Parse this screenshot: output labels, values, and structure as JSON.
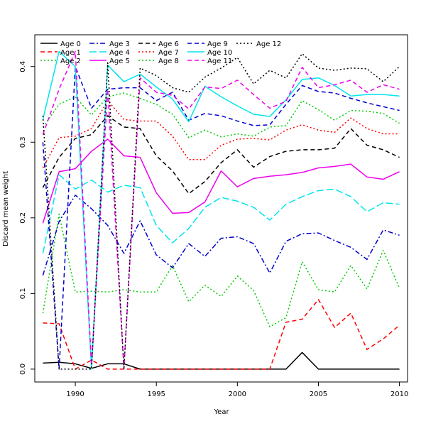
{
  "chart_data": {
    "type": "line",
    "xlabel": "Year",
    "ylabel": "Discard mean weight",
    "xlim": [
      1987.5,
      2010.5
    ],
    "ylim": [
      -0.017,
      0.442
    ],
    "xticks": [
      1990,
      1995,
      2000,
      2005,
      2010
    ],
    "yticks": [
      0.0,
      0.1,
      0.2,
      0.3,
      0.4
    ],
    "ytick_labels": [
      "0.0",
      "0.1",
      "0.2",
      "0.3",
      "0.4"
    ],
    "grid": false,
    "legend_position": "top-left",
    "x": [
      1988,
      1989,
      1990,
      1991,
      1992,
      1993,
      1994,
      1995,
      1996,
      1997,
      1998,
      1999,
      2000,
      2001,
      2002,
      2003,
      2004,
      2005,
      2006,
      2007,
      2008,
      2009,
      2010
    ],
    "series": [
      {
        "name": "Age 0",
        "color": "#000000",
        "dash": "solid",
        "values": [
          0.008,
          0.009,
          0.007,
          0.001,
          0.007,
          0.007,
          0.0,
          0.0,
          0.0,
          0.0,
          0.0,
          0.0,
          0.0,
          0.0,
          0.0,
          0.0,
          0.022,
          0.0,
          0.0,
          0.0,
          0.0,
          0.0,
          0.0
        ]
      },
      {
        "name": "Age 1",
        "color": "#ff0000",
        "dash": "dashed",
        "values": [
          0.061,
          0.06,
          0.0,
          0.012,
          0.0,
          0.0,
          0.0,
          0.0,
          0.0,
          0.0,
          0.0,
          0.0,
          0.0,
          0.0,
          0.0,
          0.062,
          0.066,
          0.092,
          0.055,
          0.074,
          0.026,
          0.04,
          0.058
        ]
      },
      {
        "name": "Age 2",
        "color": "#00cd00",
        "dash": "dotted",
        "values": [
          0.074,
          0.205,
          0.102,
          0.103,
          0.102,
          0.105,
          0.102,
          0.102,
          0.137,
          0.089,
          0.111,
          0.096,
          0.123,
          0.104,
          0.056,
          0.068,
          0.142,
          0.105,
          0.102,
          0.137,
          0.106,
          0.157,
          0.107
        ]
      },
      {
        "name": "Age 3",
        "color": "#0000cd",
        "dash": "dashdot",
        "values": [
          0.124,
          0.195,
          0.23,
          0.212,
          0.19,
          0.153,
          0.196,
          0.151,
          0.134,
          0.166,
          0.149,
          0.173,
          0.175,
          0.166,
          0.127,
          0.169,
          0.179,
          0.18,
          0.17,
          0.161,
          0.145,
          0.184,
          0.177
        ]
      },
      {
        "name": "Age 4",
        "color": "#00e5ee",
        "dash": "longdash",
        "values": [
          0.153,
          0.257,
          0.238,
          0.25,
          0.234,
          0.243,
          0.24,
          0.19,
          0.167,
          0.186,
          0.214,
          0.227,
          0.222,
          0.214,
          0.197,
          0.218,
          0.228,
          0.236,
          0.238,
          0.228,
          0.208,
          0.22,
          0.218
        ]
      },
      {
        "name": "Age 5",
        "color": "#ee00ee",
        "dash": "solid",
        "values": [
          0.193,
          0.261,
          0.265,
          0.288,
          0.304,
          0.282,
          0.28,
          0.233,
          0.206,
          0.207,
          0.221,
          0.262,
          0.241,
          0.252,
          0.255,
          0.257,
          0.26,
          0.266,
          0.268,
          0.271,
          0.254,
          0.251,
          0.261
        ]
      },
      {
        "name": "Age 6",
        "color": "#000000",
        "dash": "dashed",
        "values": [
          0.24,
          0.28,
          0.305,
          0.31,
          0.335,
          0.32,
          0.318,
          0.282,
          0.262,
          0.232,
          0.248,
          0.273,
          0.29,
          0.267,
          0.281,
          0.288,
          0.29,
          0.29,
          0.292,
          0.318,
          0.296,
          0.29,
          0.28
        ]
      },
      {
        "name": "Age 7",
        "color": "#ff0000",
        "dash": "dotted",
        "values": [
          0.266,
          0.306,
          0.308,
          0.318,
          0.355,
          0.33,
          0.328,
          0.328,
          0.308,
          0.277,
          0.277,
          0.296,
          0.304,
          0.305,
          0.303,
          0.316,
          0.323,
          0.316,
          0.313,
          0.332,
          0.318,
          0.311,
          0.311
        ]
      },
      {
        "name": "Age 8",
        "color": "#00cd00",
        "dash": "dotted",
        "values": [
          0.32,
          0.35,
          0.36,
          0.336,
          0.36,
          0.365,
          0.358,
          0.35,
          0.337,
          0.306,
          0.316,
          0.307,
          0.311,
          0.308,
          0.32,
          0.322,
          0.355,
          0.343,
          0.329,
          0.342,
          0.341,
          0.338,
          0.325
        ]
      },
      {
        "name": "Age 9",
        "color": "#0000cd",
        "dash": "dashed",
        "values": [
          0.3,
          0.0,
          0.4,
          0.345,
          0.37,
          0.372,
          0.372,
          0.355,
          0.366,
          0.329,
          0.338,
          0.335,
          0.328,
          0.322,
          0.323,
          0.35,
          0.375,
          0.367,
          0.365,
          0.358,
          0.352,
          0.347,
          0.342
        ]
      },
      {
        "name": "Age 10",
        "color": "#00e5ee",
        "dash": "solid",
        "values": [
          0.33,
          0.42,
          0.4,
          0.0,
          0.402,
          0.38,
          0.39,
          0.373,
          0.357,
          0.327,
          0.374,
          0.36,
          0.348,
          0.337,
          0.334,
          0.356,
          0.383,
          0.385,
          0.375,
          0.361,
          0.363,
          0.363,
          0.361
        ]
      },
      {
        "name": "Age 11",
        "color": "#ee00ee",
        "dash": "dashed",
        "values": [
          0.31,
          0.37,
          0.42,
          0.005,
          0.37,
          0.0,
          0.385,
          0.366,
          0.362,
          0.344,
          0.373,
          0.371,
          0.382,
          0.363,
          0.345,
          0.354,
          0.399,
          0.372,
          0.376,
          0.382,
          0.366,
          0.376,
          0.37
        ]
      },
      {
        "name": "Age 12",
        "color": "#000000",
        "dash": "dotted",
        "values": [
          0.335,
          0.0,
          0.0,
          0.0,
          0.405,
          0.0,
          0.398,
          0.388,
          0.372,
          0.366,
          0.386,
          0.398,
          0.412,
          0.377,
          0.395,
          0.385,
          0.417,
          0.398,
          0.395,
          0.398,
          0.397,
          0.38,
          0.4
        ]
      }
    ]
  }
}
